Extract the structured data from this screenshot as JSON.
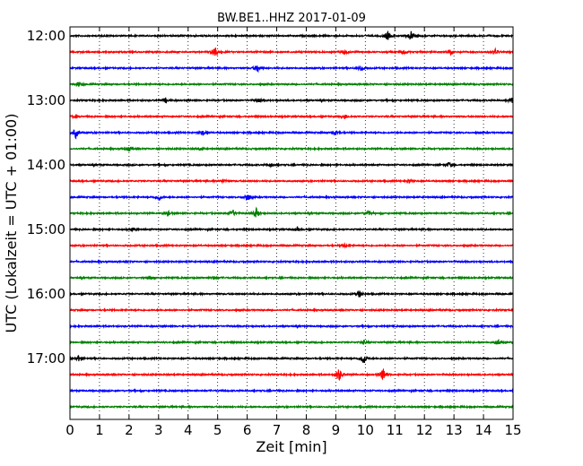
{
  "chart_data": {
    "type": "line",
    "title": "BW.BE1..HHZ 2017-01-09",
    "xlabel": "Zeit  [min]",
    "ylabel": "UTC (Lokalzeit = UTC + 01:00)",
    "xlim": [
      0,
      15
    ],
    "x_ticks": [
      "0",
      "1",
      "2",
      "3",
      "4",
      "5",
      "6",
      "7",
      "8",
      "9",
      "10",
      "11",
      "12",
      "13",
      "14",
      "15"
    ],
    "y_ticks": [
      "12:00",
      "13:00",
      "14:00",
      "15:00",
      "16:00",
      "17:00"
    ],
    "grid": "vertical dotted",
    "trace_colors": [
      "#000000",
      "#ff0000",
      "#0000ff",
      "#008000"
    ],
    "traces": [
      {
        "start": "12:00",
        "color": "#000000",
        "events": [
          [
            10.75,
            5
          ],
          [
            11.55,
            5
          ]
        ]
      },
      {
        "start": "12:15",
        "color": "#ff0000",
        "events": [
          [
            4.9,
            7
          ],
          [
            9.3,
            3
          ],
          [
            11.3,
            3
          ],
          [
            12.9,
            3
          ],
          [
            14.4,
            3
          ]
        ]
      },
      {
        "start": "12:30",
        "color": "#0000ff",
        "events": [
          [
            6.35,
            5
          ],
          [
            9.85,
            3
          ]
        ]
      },
      {
        "start": "12:45",
        "color": "#008000",
        "events": [
          [
            0.3,
            3
          ]
        ]
      },
      {
        "start": "13:00",
        "color": "#000000",
        "events": [
          [
            3.25,
            3
          ],
          [
            6.4,
            2
          ],
          [
            14.95,
            3
          ]
        ]
      },
      {
        "start": "13:15",
        "color": "#ff0000",
        "events": [
          [
            0.2,
            2
          ],
          [
            9.3,
            3
          ]
        ]
      },
      {
        "start": "13:30",
        "color": "#0000ff",
        "events": [
          [
            0.2,
            6
          ],
          [
            4.5,
            3
          ],
          [
            9.0,
            3
          ]
        ]
      },
      {
        "start": "13:45",
        "color": "#008000",
        "events": [
          [
            2.0,
            3
          ],
          [
            4.4,
            2
          ]
        ]
      },
      {
        "start": "14:00",
        "color": "#000000",
        "events": [
          [
            6.8,
            2
          ],
          [
            12.85,
            3
          ]
        ]
      },
      {
        "start": "14:15",
        "color": "#ff0000",
        "events": [
          [
            5.2,
            2
          ],
          [
            11.5,
            2
          ]
        ]
      },
      {
        "start": "14:30",
        "color": "#0000ff",
        "events": [
          [
            3.0,
            4
          ],
          [
            6.0,
            5
          ]
        ]
      },
      {
        "start": "14:45",
        "color": "#008000",
        "events": [
          [
            3.3,
            3
          ],
          [
            5.5,
            4
          ],
          [
            6.3,
            6
          ],
          [
            10.1,
            3
          ]
        ]
      },
      {
        "start": "15:00",
        "color": "#000000",
        "events": [
          [
            2.1,
            3
          ],
          [
            7.7,
            2
          ]
        ]
      },
      {
        "start": "15:15",
        "color": "#ff0000",
        "events": [
          [
            9.3,
            2
          ]
        ]
      },
      {
        "start": "15:30",
        "color": "#0000ff",
        "events": []
      },
      {
        "start": "15:45",
        "color": "#008000",
        "events": [
          [
            2.7,
            3
          ],
          [
            4.9,
            2
          ]
        ]
      },
      {
        "start": "16:00",
        "color": "#000000",
        "events": [
          [
            9.8,
            4
          ]
        ]
      },
      {
        "start": "16:15",
        "color": "#ff0000",
        "events": []
      },
      {
        "start": "16:30",
        "color": "#0000ff",
        "events": []
      },
      {
        "start": "16:45",
        "color": "#008000",
        "events": [
          [
            9.95,
            2
          ],
          [
            14.5,
            3
          ]
        ]
      },
      {
        "start": "17:00",
        "color": "#000000",
        "events": [
          [
            0.3,
            4
          ],
          [
            9.95,
            7
          ]
        ]
      },
      {
        "start": "17:15",
        "color": "#ff0000",
        "events": [
          [
            9.1,
            8
          ],
          [
            10.6,
            8
          ]
        ]
      },
      {
        "start": "17:30",
        "color": "#0000ff",
        "events": []
      },
      {
        "start": "17:45",
        "color": "#008000",
        "events": []
      }
    ]
  }
}
